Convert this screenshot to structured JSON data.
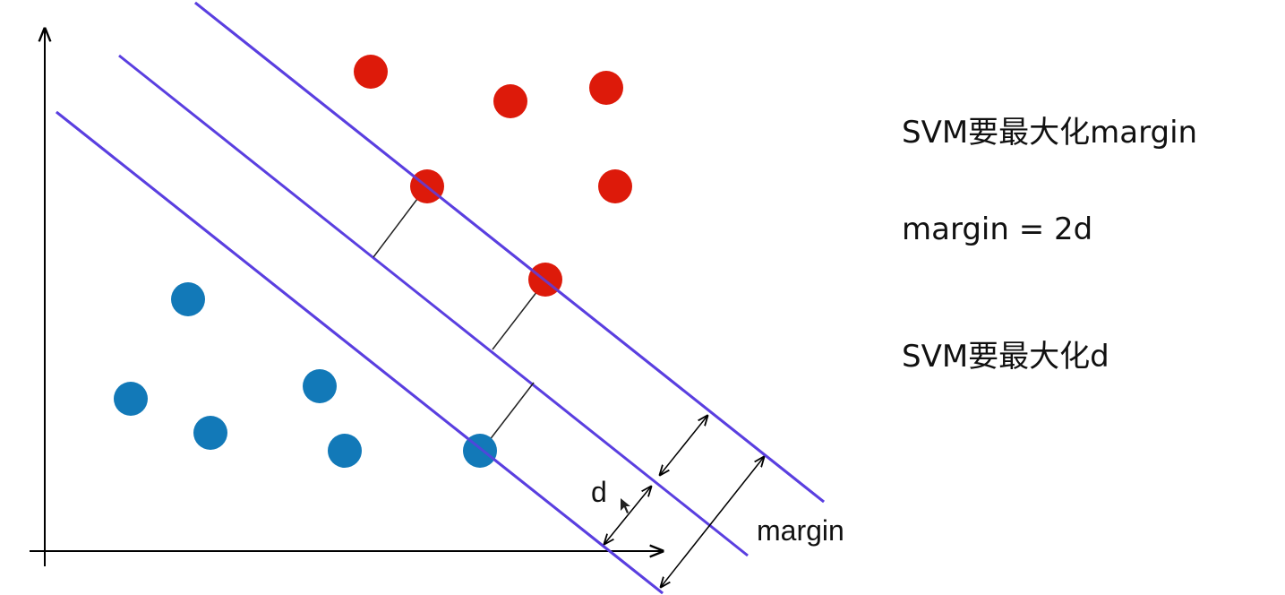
{
  "notes": {
    "line1": "SVM要最大化margin",
    "line2": "margin = 2d",
    "line3": "SVM要最大化d"
  },
  "labels": {
    "d": "d",
    "margin": "margin"
  },
  "colors": {
    "class_a": "#dd1a0a",
    "class_b": "#1279b8",
    "boundary": "#5a3fe0",
    "axis": "#000000"
  }
}
